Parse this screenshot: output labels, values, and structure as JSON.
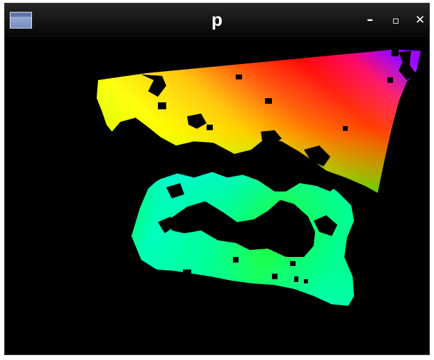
{
  "window": {
    "title": "p",
    "buttons": {
      "minimize_glyph": "–",
      "maximize_glyph": "▫",
      "close_glyph": "✕"
    },
    "icons": {
      "app": "window-app-icon",
      "minimize": "minimize-icon",
      "maximize": "maximize-icon",
      "close": "close-icon"
    }
  },
  "viewport": {
    "background": "#000000",
    "colormap": [
      "#8000ff",
      "#ff0080",
      "#ff0000",
      "#ff8000",
      "#ffff00",
      "#00ff00",
      "#00ff80",
      "#00ffff"
    ]
  }
}
